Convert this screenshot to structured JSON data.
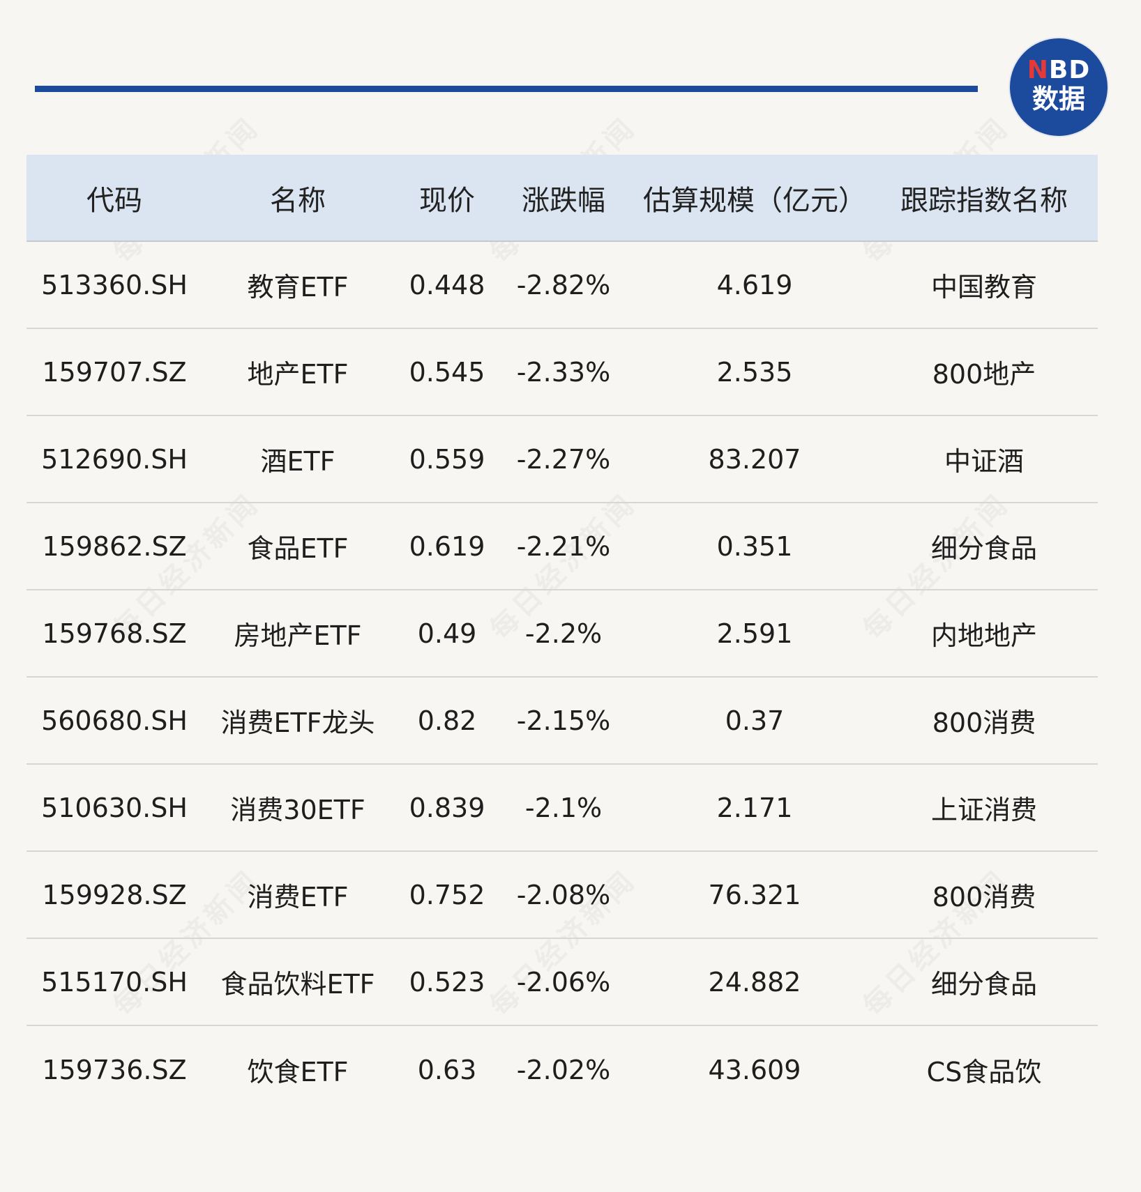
{
  "logo": {
    "brand_latin_n": "N",
    "brand_latin_rest": "BD",
    "brand_cn": "数据"
  },
  "watermark": {
    "text": "每日经济新闻"
  },
  "table": {
    "headers": [
      "代码",
      "名称",
      "现价",
      "涨跌幅",
      "估算规模（亿元）",
      "跟踪指数名称"
    ],
    "rows": [
      [
        "513360.SH",
        "教育ETF",
        "0.448",
        "-2.82%",
        "4.619",
        "中国教育"
      ],
      [
        "159707.SZ",
        "地产ETF",
        "0.545",
        "-2.33%",
        "2.535",
        "800地产"
      ],
      [
        "512690.SH",
        "酒ETF",
        "0.559",
        "-2.27%",
        "83.207",
        "中证酒"
      ],
      [
        "159862.SZ",
        "食品ETF",
        "0.619",
        "-2.21%",
        "0.351",
        "细分食品"
      ],
      [
        "159768.SZ",
        "房地产ETF",
        "0.49",
        "-2.2%",
        "2.591",
        "内地地产"
      ],
      [
        "560680.SH",
        "消费ETF龙头",
        "0.82",
        "-2.15%",
        "0.37",
        "800消费"
      ],
      [
        "510630.SH",
        "消费30ETF",
        "0.839",
        "-2.1%",
        "2.171",
        "上证消费"
      ],
      [
        "159928.SZ",
        "消费ETF",
        "0.752",
        "-2.08%",
        "76.321",
        "800消费"
      ],
      [
        "515170.SH",
        "食品饮料ETF",
        "0.523",
        "-2.06%",
        "24.882",
        "细分食品"
      ],
      [
        "159736.SZ",
        "饮食ETF",
        "0.63",
        "-2.02%",
        "43.609",
        "CS食品饮"
      ]
    ]
  },
  "colors": {
    "accent_blue": "#1c4a9c",
    "logo_red": "#e43a37",
    "header_bg": "#dbe5f1",
    "page_bg": "#f8f6f2"
  }
}
